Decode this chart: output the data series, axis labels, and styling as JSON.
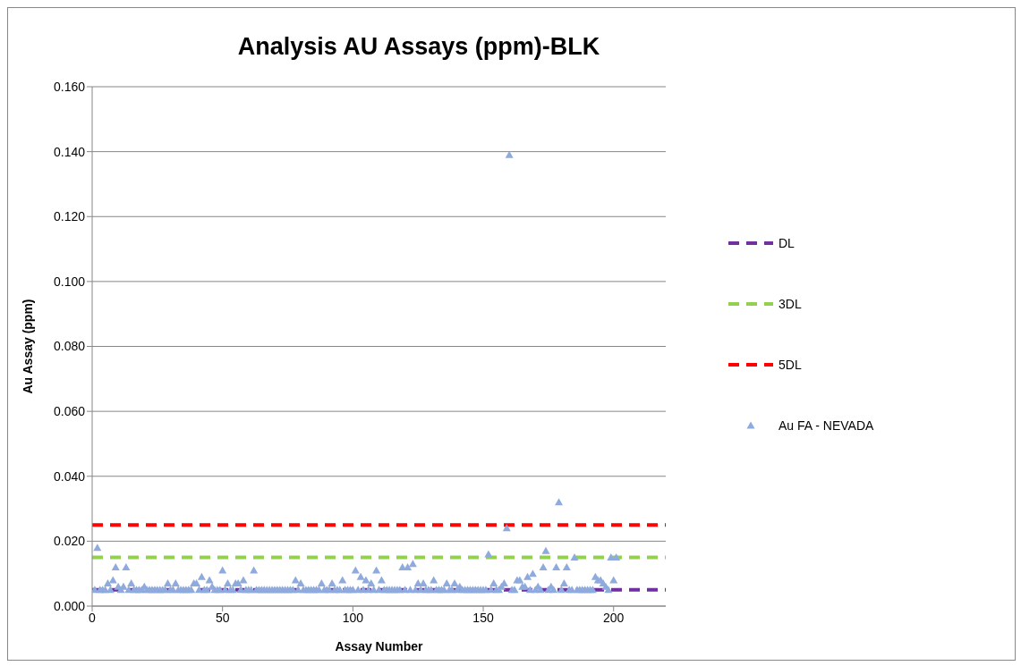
{
  "chart_data": {
    "type": "scatter",
    "title": "Analysis AU Assays (ppm)-BLK",
    "xlabel": "Assay Number",
    "ylabel": "Au Assay (ppm)",
    "xlim": [
      0,
      220
    ],
    "xticks": [
      0,
      50,
      100,
      150,
      200
    ],
    "ylim": [
      0,
      0.16
    ],
    "yticks": [
      {
        "value": 0,
        "label": "0.000"
      },
      {
        "value": 0.02,
        "label": "0.020"
      },
      {
        "value": 0.04,
        "label": "0.040"
      },
      {
        "value": 0.06,
        "label": "0.060"
      },
      {
        "value": 0.08,
        "label": "0.080"
      },
      {
        "value": 0.1,
        "label": "0.100"
      },
      {
        "value": 0.12,
        "label": "0.120"
      },
      {
        "value": 0.14,
        "label": "0.140"
      },
      {
        "value": 0.16,
        "label": "0.160"
      }
    ],
    "grid": "y",
    "legend": "right",
    "series": [
      {
        "name": "DL",
        "type": "line",
        "color": "#7030a0",
        "line_style": "dashed",
        "x": [
          0,
          220
        ],
        "values": [
          0.005,
          0.005
        ]
      },
      {
        "name": "3DL",
        "type": "line",
        "color": "#92d050",
        "line_style": "dashed",
        "x": [
          0,
          220
        ],
        "values": [
          0.015,
          0.015
        ]
      },
      {
        "name": "5DL",
        "type": "line",
        "color": "#ff0000",
        "line_style": "dashed",
        "x": [
          0,
          220
        ],
        "values": [
          0.025,
          0.025
        ]
      },
      {
        "name": "Au FA - NEVADA",
        "color": "#8faadc",
        "marker": "triangle",
        "x": [
          1,
          2,
          3,
          4,
          5,
          6,
          7,
          8,
          9,
          10,
          11,
          12,
          13,
          14,
          15,
          16,
          17,
          18,
          19,
          20,
          21,
          22,
          23,
          24,
          25,
          26,
          27,
          28,
          29,
          30,
          31,
          32,
          33,
          34,
          35,
          36,
          37,
          38,
          39,
          40,
          41,
          42,
          43,
          44,
          45,
          46,
          47,
          48,
          49,
          50,
          51,
          52,
          53,
          54,
          55,
          56,
          57,
          58,
          59,
          60,
          61,
          62,
          63,
          64,
          65,
          66,
          67,
          68,
          69,
          70,
          71,
          72,
          73,
          74,
          75,
          76,
          77,
          78,
          79,
          80,
          81,
          82,
          83,
          84,
          85,
          86,
          87,
          88,
          89,
          90,
          91,
          92,
          93,
          94,
          95,
          96,
          97,
          98,
          99,
          100,
          101,
          102,
          103,
          104,
          105,
          106,
          107,
          108,
          109,
          110,
          111,
          112,
          113,
          114,
          115,
          116,
          117,
          118,
          119,
          120,
          121,
          122,
          123,
          124,
          125,
          126,
          127,
          128,
          129,
          130,
          131,
          132,
          133,
          134,
          135,
          136,
          137,
          138,
          139,
          140,
          141,
          142,
          143,
          144,
          145,
          146,
          147,
          148,
          149,
          150,
          151,
          152,
          153,
          154,
          155,
          156,
          157,
          158,
          159,
          160,
          161,
          162,
          163,
          164,
          165,
          166,
          167,
          168,
          169,
          170,
          171,
          172,
          173,
          174,
          175,
          176,
          177,
          178,
          179,
          180,
          181,
          182,
          183,
          184,
          185,
          186,
          187,
          188,
          189,
          190,
          191,
          192,
          193,
          194,
          195,
          196,
          197,
          198,
          199,
          200,
          201
        ],
        "values": [
          0.005,
          0.018,
          0.005,
          0.005,
          0.005,
          0.007,
          0.005,
          0.008,
          0.012,
          0.006,
          0.005,
          0.006,
          0.012,
          0.005,
          0.007,
          0.005,
          0.005,
          0.005,
          0.005,
          0.006,
          0.005,
          0.005,
          0.005,
          0.005,
          0.005,
          0.005,
          0.005,
          0.005,
          0.007,
          0.005,
          0.005,
          0.007,
          0.005,
          0.005,
          0.005,
          0.005,
          0.005,
          0.005,
          0.007,
          0.007,
          0.005,
          0.009,
          0.005,
          0.005,
          0.008,
          0.006,
          0.005,
          0.005,
          0.005,
          0.011,
          0.005,
          0.007,
          0.005,
          0.005,
          0.007,
          0.007,
          0.005,
          0.008,
          0.005,
          0.005,
          0.005,
          0.011,
          0.005,
          0.005,
          0.005,
          0.005,
          0.005,
          0.005,
          0.005,
          0.005,
          0.005,
          0.005,
          0.005,
          0.005,
          0.005,
          0.005,
          0.005,
          0.008,
          0.005,
          0.007,
          0.005,
          0.005,
          0.005,
          0.005,
          0.005,
          0.005,
          0.005,
          0.007,
          0.005,
          0.005,
          0.005,
          0.007,
          0.005,
          0.005,
          0.005,
          0.008,
          0.005,
          0.005,
          0.005,
          0.005,
          0.011,
          0.005,
          0.009,
          0.005,
          0.008,
          0.005,
          0.007,
          0.005,
          0.011,
          0.005,
          0.008,
          0.005,
          0.005,
          0.005,
          0.005,
          0.005,
          0.005,
          0.005,
          0.012,
          0.005,
          0.012,
          0.005,
          0.013,
          0.005,
          0.007,
          0.005,
          0.007,
          0.005,
          0.005,
          0.005,
          0.008,
          0.005,
          0.005,
          0.005,
          0.005,
          0.007,
          0.005,
          0.005,
          0.007,
          0.005,
          0.006,
          0.005,
          0.005,
          0.005,
          0.005,
          0.005,
          0.005,
          0.005,
          0.005,
          0.005,
          0.005,
          0.016,
          0.005,
          0.007,
          0.005,
          0.005,
          0.006,
          0.007,
          0.024,
          0.139,
          0.005,
          0.005,
          0.008,
          0.008,
          0.006,
          0.006,
          0.009,
          0.005,
          0.01,
          0.005,
          0.006,
          0.005,
          0.012,
          0.017,
          0.005,
          0.006,
          0.005,
          0.012,
          0.032,
          0.005,
          0.007,
          0.012,
          0.005,
          0.005,
          0.015,
          0.005,
          0.005,
          0.005,
          0.005,
          0.005,
          0.005,
          0.005,
          0.009,
          0.008,
          0.008,
          0.007,
          0.006,
          0.005,
          0.015,
          0.008,
          0.015
        ]
      }
    ]
  }
}
